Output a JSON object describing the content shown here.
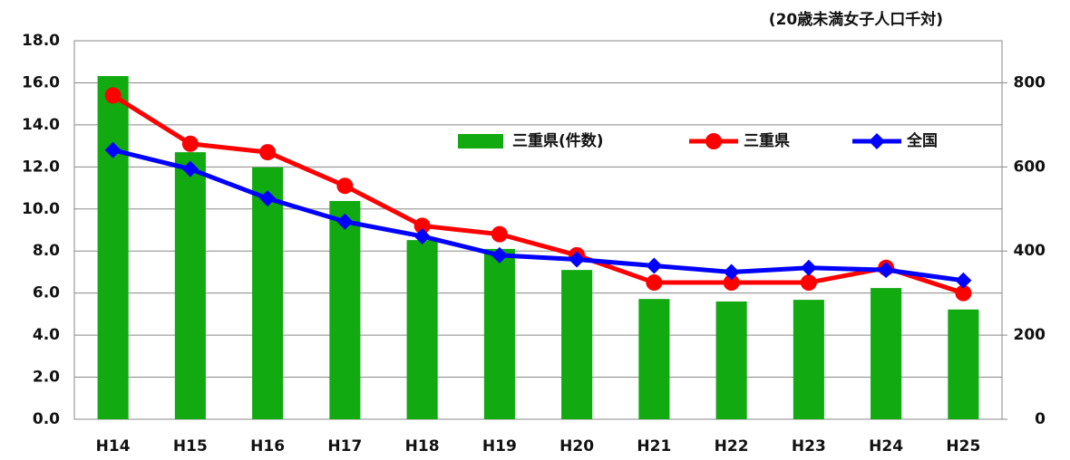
{
  "chart_data": {
    "type": "bar",
    "annotation": "(20歳未満女子人口千対)",
    "categories": [
      "H14",
      "H15",
      "H16",
      "H17",
      "H18",
      "H19",
      "H20",
      "H21",
      "H22",
      "H23",
      "H24",
      "H25"
    ],
    "series": [
      {
        "name": "三重県(件数)",
        "type": "bar",
        "axis": "y2",
        "color": "#11aa11",
        "values": [
          816,
          635,
          599,
          519,
          426,
          405,
          355,
          286,
          280,
          284,
          312,
          261
        ]
      },
      {
        "name": "三重県",
        "type": "line",
        "color": "#ff0000",
        "values": [
          15.4,
          13.1,
          12.7,
          11.1,
          9.2,
          8.8,
          7.8,
          6.5,
          6.5,
          6.5,
          7.2,
          6.0
        ]
      },
      {
        "name": "全国",
        "type": "line",
        "color": "#0000ff",
        "values": [
          12.8,
          11.9,
          10.5,
          9.4,
          8.7,
          7.8,
          7.6,
          7.3,
          7.0,
          7.2,
          7.1,
          6.6
        ]
      }
    ],
    "ylim": [
      0,
      18
    ],
    "yticks": [
      {
        "value": 0,
        "label": "0.0"
      },
      {
        "value": 2,
        "label": "2.0"
      },
      {
        "value": 4,
        "label": "4.0"
      },
      {
        "value": 6,
        "label": "6.0"
      },
      {
        "value": 8,
        "label": "8.0"
      },
      {
        "value": 10,
        "label": "10.0"
      },
      {
        "value": 12,
        "label": "12.0"
      },
      {
        "value": 14,
        "label": "14.0"
      },
      {
        "value": 16,
        "label": "16.0"
      },
      {
        "value": 18,
        "label": "18.0"
      }
    ],
    "y2lim": [
      0,
      900
    ],
    "y2ticks": [
      0,
      200,
      400,
      600,
      800
    ],
    "grid": true
  }
}
